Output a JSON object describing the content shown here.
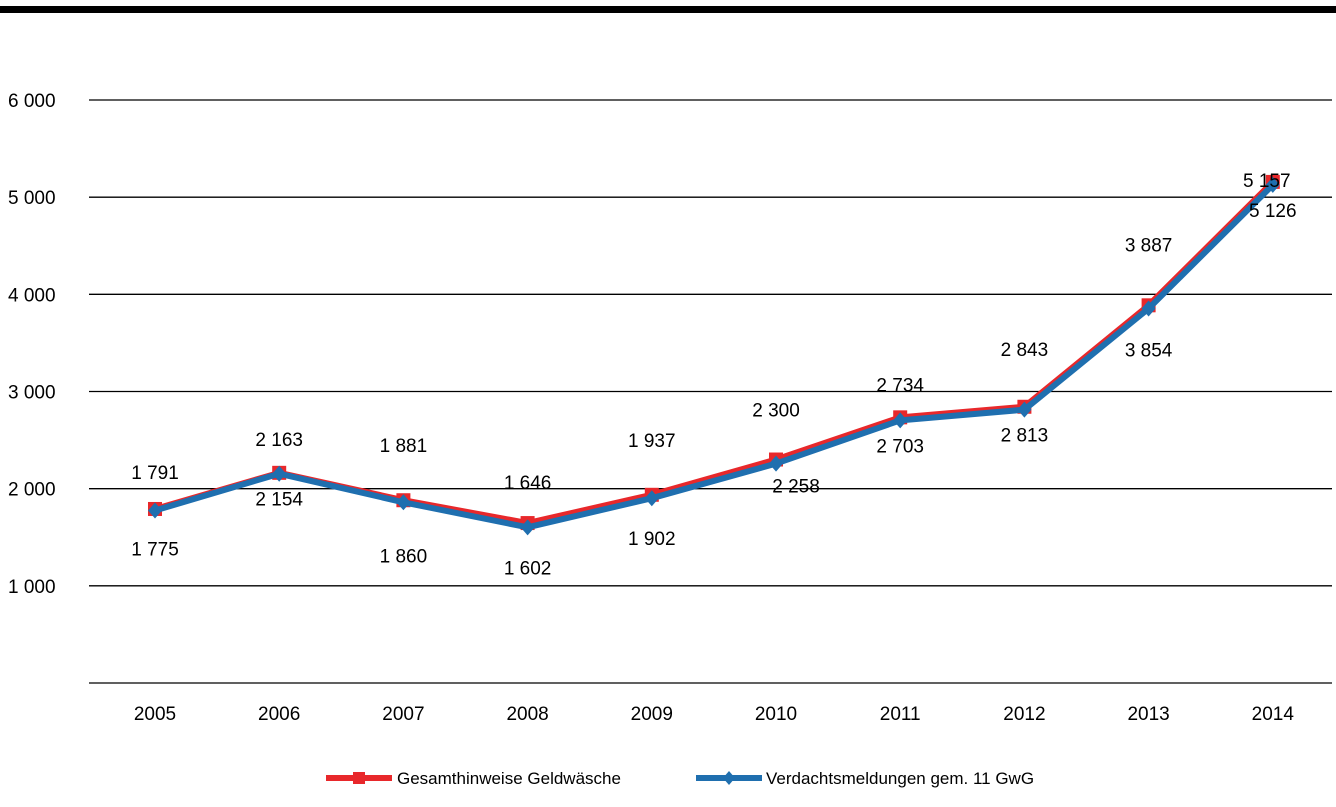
{
  "chart_data": {
    "type": "line",
    "categories": [
      "2005",
      "2006",
      "2007",
      "2008",
      "2009",
      "2010",
      "2011",
      "2012",
      "2013",
      "2014"
    ],
    "series": [
      {
        "name": "Gesamthinweise Geldwäsche",
        "color": "#E8282B",
        "marker": "square",
        "values": [
          1791,
          2163,
          1881,
          1646,
          1937,
          2300,
          2734,
          2843,
          3887,
          5157
        ],
        "labels": [
          "1 791",
          "2 163",
          "1 881",
          "1 646",
          "1 937",
          "2 300",
          "2 734",
          "2 843",
          "3 887",
          "5 157"
        ]
      },
      {
        "name": "Verdachtsmeldungen gem. 11 GwG",
        "color": "#1F6FAF",
        "marker": "diamond",
        "values": [
          1775,
          2154,
          1860,
          1602,
          1902,
          2258,
          2703,
          2813,
          3854,
          5126
        ],
        "labels": [
          "1 775",
          "2 154",
          "1 860",
          "1 602",
          "1 902",
          "2 258",
          "2 703",
          "2 813",
          "3 854",
          "5 126"
        ]
      }
    ],
    "yticks": [
      {
        "value": 1000,
        "label": "1 000"
      },
      {
        "value": 2000,
        "label": "2 000"
      },
      {
        "value": 3000,
        "label": "3 000"
      },
      {
        "value": 4000,
        "label": "4 000"
      },
      {
        "value": 5000,
        "label": "5 000"
      },
      {
        "value": 6000,
        "label": "6 000"
      }
    ],
    "ylim": [
      0,
      6000
    ],
    "grid": true,
    "legend_position": "bottom",
    "title": "",
    "xlabel": "",
    "ylabel": ""
  }
}
